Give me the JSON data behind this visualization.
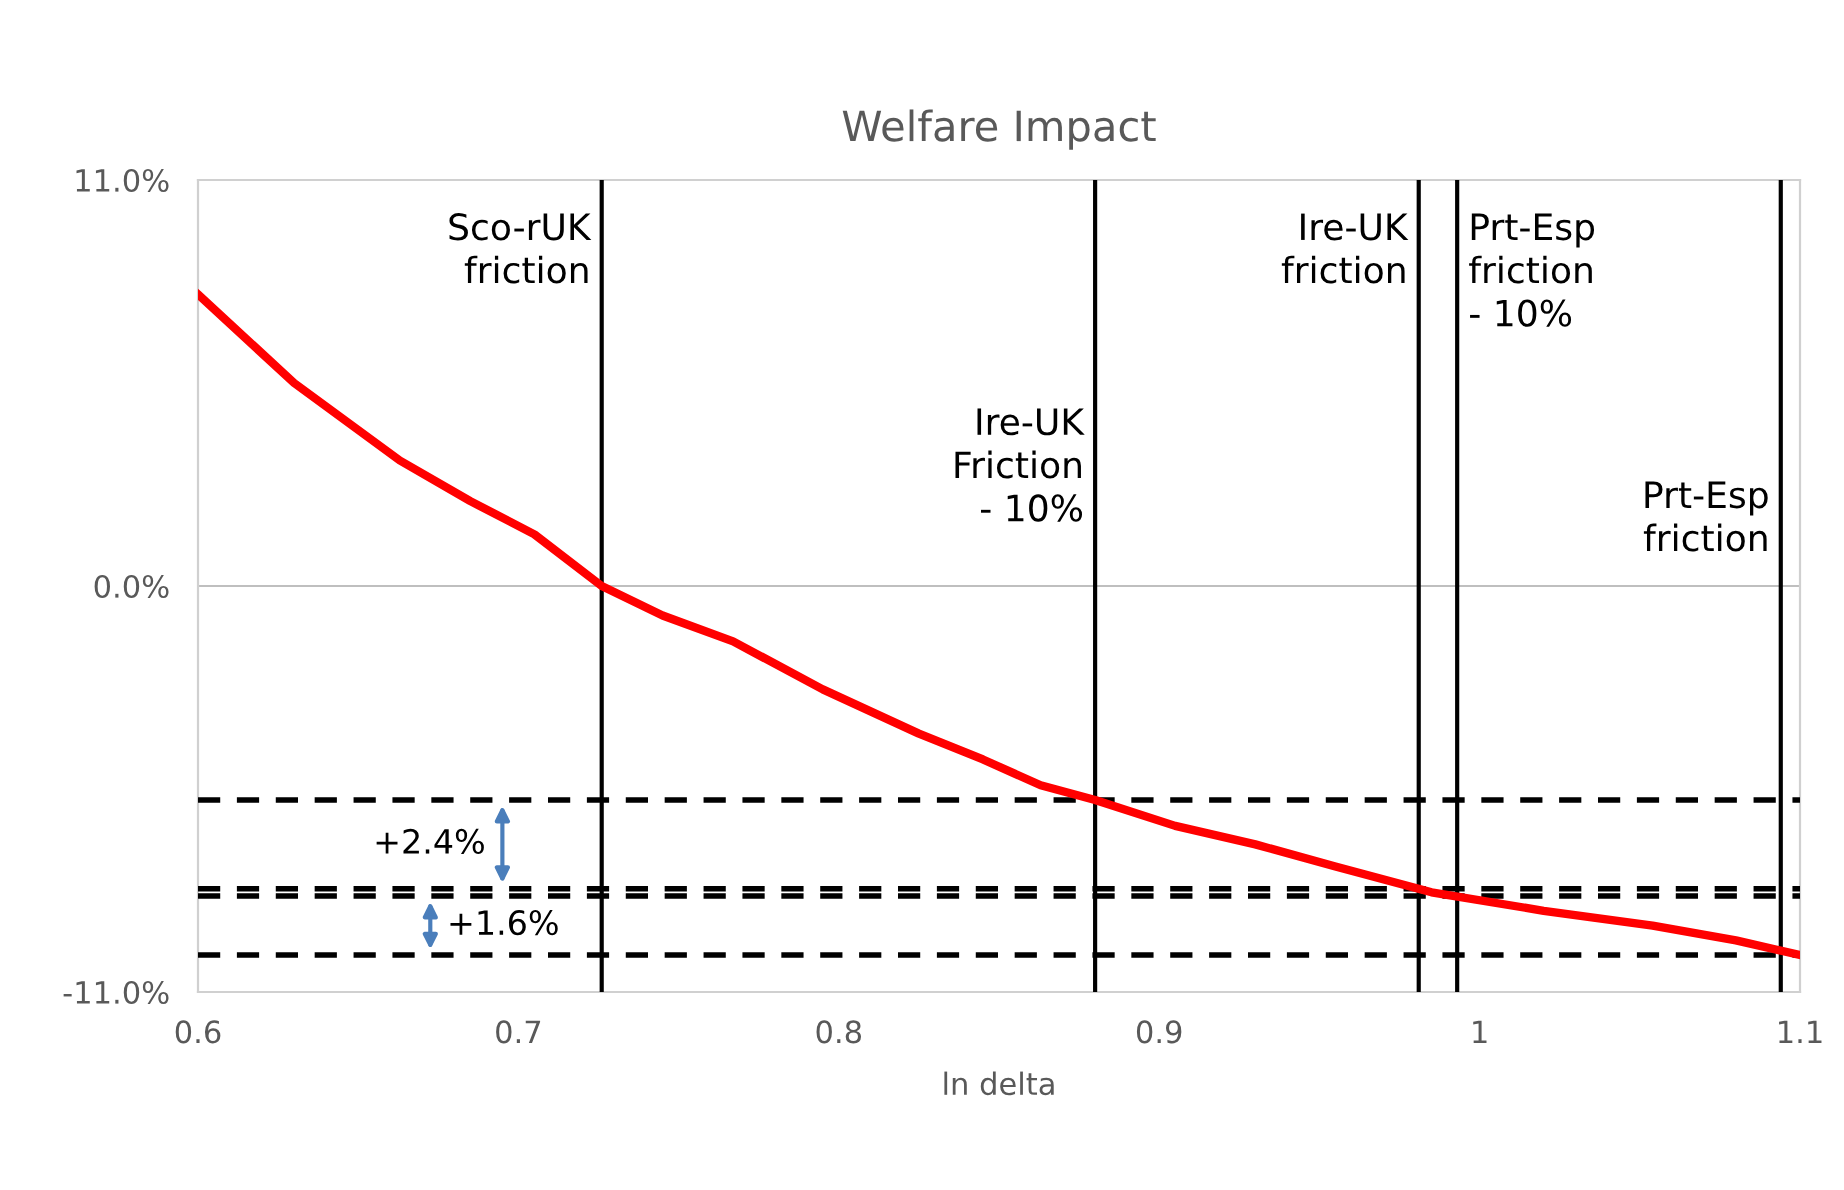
{
  "chart_data": {
    "type": "line",
    "title": "Welfare Impact",
    "xlabel": "ln delta",
    "x": [
      0.6,
      0.63,
      0.663,
      0.685,
      0.705,
      0.726,
      0.745,
      0.767,
      0.795,
      0.825,
      0.845,
      0.863,
      0.88,
      0.905,
      0.93,
      0.955,
      0.985,
      1.02,
      1.054,
      1.08,
      1.1
    ],
    "series": [
      {
        "color": "#ff0000",
        "values": [
          7.9,
          5.5,
          3.4,
          2.3,
          1.4,
          0.0,
          -0.8,
          -1.5,
          -2.8,
          -4.0,
          -4.7,
          -5.4,
          -5.8,
          -6.5,
          -7.0,
          -7.6,
          -8.3,
          -8.8,
          -9.2,
          -9.6,
          -10.0
        ]
      }
    ],
    "xlim": [
      0.6,
      1.1
    ],
    "xticks": [
      0.6,
      0.7,
      0.8,
      0.9,
      1,
      1.1
    ],
    "ylim": [
      -11,
      11
    ],
    "yticks": [
      {
        "value": 11,
        "label": "11.0%"
      },
      {
        "value": 0,
        "label": "0.0%"
      },
      {
        "value": -11,
        "label": "-11.0%"
      }
    ],
    "grid": "y",
    "marker": "none",
    "line_style": "solid",
    "ref_lines": [
      {
        "axis": "x",
        "value": 0.726,
        "label": "Sco-rUK\nfriction",
        "color": "#000000"
      },
      {
        "axis": "x",
        "value": 0.88,
        "label": "Ire-UK\nFriction\n- 10%",
        "color": "#000000"
      },
      {
        "axis": "x",
        "value": 0.981,
        "label": "Ire-UK\nfriction",
        "color": "#000000"
      },
      {
        "axis": "x",
        "value": 0.993,
        "label": "Prt-Esp\nfriction\n- 10%",
        "color": "#000000"
      },
      {
        "axis": "x",
        "value": 1.094,
        "label": "Prt-Esp\nfriction",
        "color": "#000000"
      },
      {
        "axis": "y",
        "value": -5.8,
        "color": "#000000",
        "line_style": "dashed"
      },
      {
        "axis": "y",
        "value": -8.2,
        "color": "#000000",
        "line_style": "dashed"
      },
      {
        "axis": "y",
        "value": -8.4,
        "color": "#000000",
        "line_style": "dashed"
      },
      {
        "axis": "y",
        "value": -10.0,
        "color": "#000000",
        "line_style": "dashed"
      }
    ],
    "annotations": [
      "+2.4%",
      "+1.6%"
    ]
  }
}
